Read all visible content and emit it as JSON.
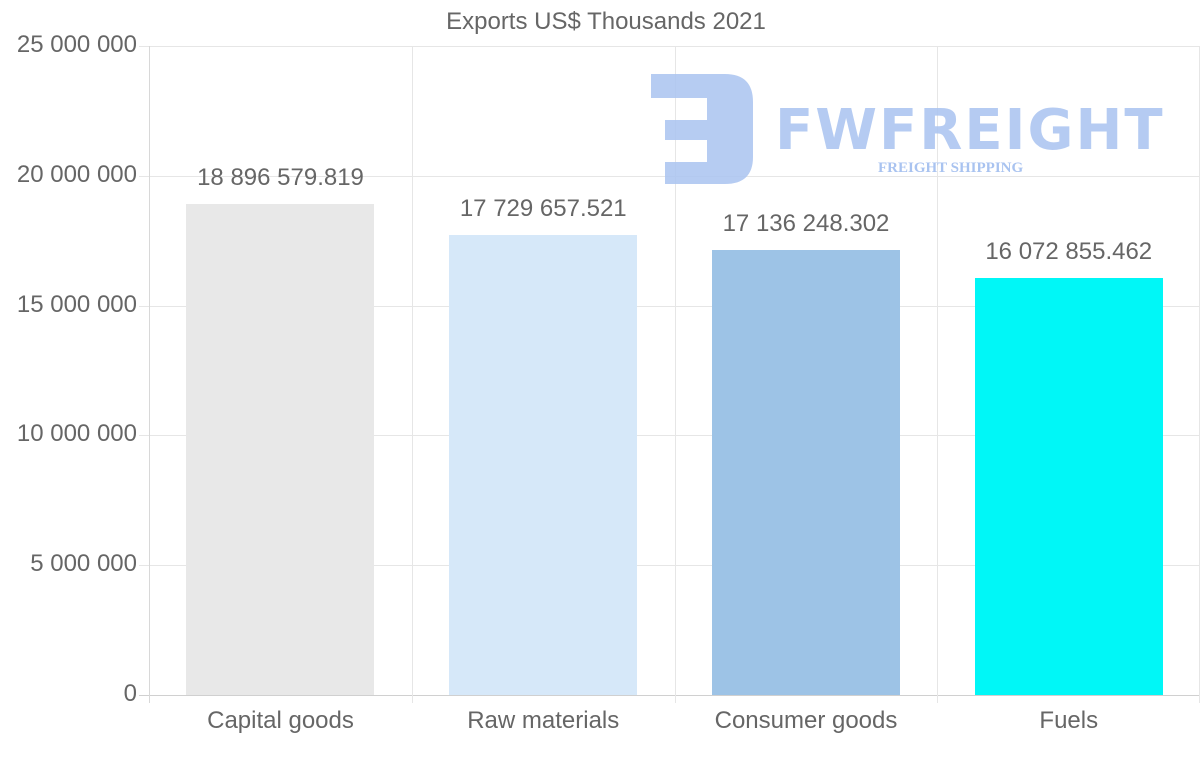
{
  "chart_data": {
    "type": "bar",
    "title": "Exports US$ Thousands 2021",
    "xlabel": "",
    "ylabel": "",
    "categories": [
      "Capital goods",
      "Raw materials",
      "Consumer goods",
      "Fuels"
    ],
    "values": [
      18896579.819,
      17729657.521,
      17136248.302,
      16072855.462
    ],
    "value_labels": [
      "18 896 579.819",
      "17 729 657.521",
      "17 136 248.302",
      "16 072 855.462"
    ],
    "colors": [
      "#e8e8e8",
      "#d6e8f9",
      "#9dc3e6",
      "#00f7f7"
    ],
    "ylim": [
      0,
      25000000
    ],
    "y_ticks": [
      0,
      5000000,
      10000000,
      15000000,
      20000000,
      25000000
    ],
    "y_tick_labels": [
      "0",
      "5 000 000",
      "10 000 000",
      "15 000 000",
      "20 000 000",
      "25 000 000"
    ],
    "grid": true,
    "legend": "none"
  },
  "watermark": {
    "brand": "FWFREIGHT",
    "tagline": "FREIGHT SHIPPING",
    "color": "#a9c3f0"
  }
}
